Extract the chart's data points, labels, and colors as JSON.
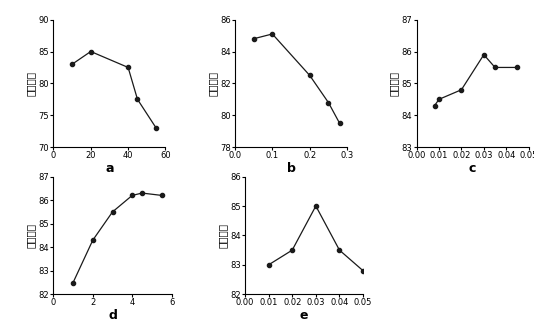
{
  "subplot_a": {
    "x": [
      10,
      20,
      40,
      45,
      55
    ],
    "y": [
      83,
      85,
      82.5,
      77.5,
      73
    ],
    "xlabel": "a",
    "xlim": [
      0,
      60
    ],
    "xticks": [
      0,
      20,
      40,
      60
    ],
    "ylim": [
      70,
      90
    ],
    "yticks": [
      70,
      75,
      80,
      85,
      90
    ]
  },
  "subplot_b": {
    "x": [
      0.05,
      0.1,
      0.2,
      0.25,
      0.28
    ],
    "y": [
      84.8,
      85.1,
      82.5,
      80.8,
      79.5
    ],
    "xlabel": "b",
    "xlim": [
      0,
      0.3
    ],
    "xticks": [
      0,
      0.1,
      0.2,
      0.3
    ],
    "ylim": [
      78,
      86
    ],
    "yticks": [
      78,
      80,
      82,
      84,
      86
    ]
  },
  "subplot_c": {
    "x": [
      0.008,
      0.01,
      0.02,
      0.03,
      0.035,
      0.045
    ],
    "y": [
      84.3,
      84.5,
      84.8,
      85.9,
      85.5,
      85.5
    ],
    "xlabel": "c",
    "xlim": [
      0,
      0.05
    ],
    "xticks": [
      0,
      0.01,
      0.02,
      0.03,
      0.04,
      0.05
    ],
    "ylim": [
      83,
      87
    ],
    "yticks": [
      83,
      84,
      85,
      86,
      87
    ]
  },
  "subplot_d": {
    "x": [
      1,
      2,
      3,
      4,
      4.5,
      5.5
    ],
    "y": [
      82.5,
      84.3,
      85.5,
      86.2,
      86.3,
      86.2
    ],
    "xlabel": "d",
    "xlim": [
      0,
      6
    ],
    "xticks": [
      0,
      2,
      4,
      6
    ],
    "ylim": [
      82,
      87
    ],
    "yticks": [
      82,
      83,
      84,
      85,
      86,
      87
    ]
  },
  "subplot_e": {
    "x": [
      0.01,
      0.02,
      0.03,
      0.04,
      0.05
    ],
    "y": [
      83,
      83.5,
      85,
      83.5,
      82.8
    ],
    "xlabel": "e",
    "xlim": [
      0,
      0.05
    ],
    "xticks": [
      0,
      0.01,
      0.02,
      0.03,
      0.04,
      0.05
    ],
    "ylim": [
      82,
      86
    ],
    "yticks": [
      82,
      83,
      84,
      85,
      86
    ]
  },
  "ylabel": "感官评分",
  "line_color": "#1a1a1a",
  "marker": "o",
  "marker_size": 3.0,
  "marker_color": "#1a1a1a",
  "linewidth": 0.9,
  "tick_labelsize": 6.0,
  "xlabel_fontsize": 9,
  "ylabel_fontsize": 7.5
}
